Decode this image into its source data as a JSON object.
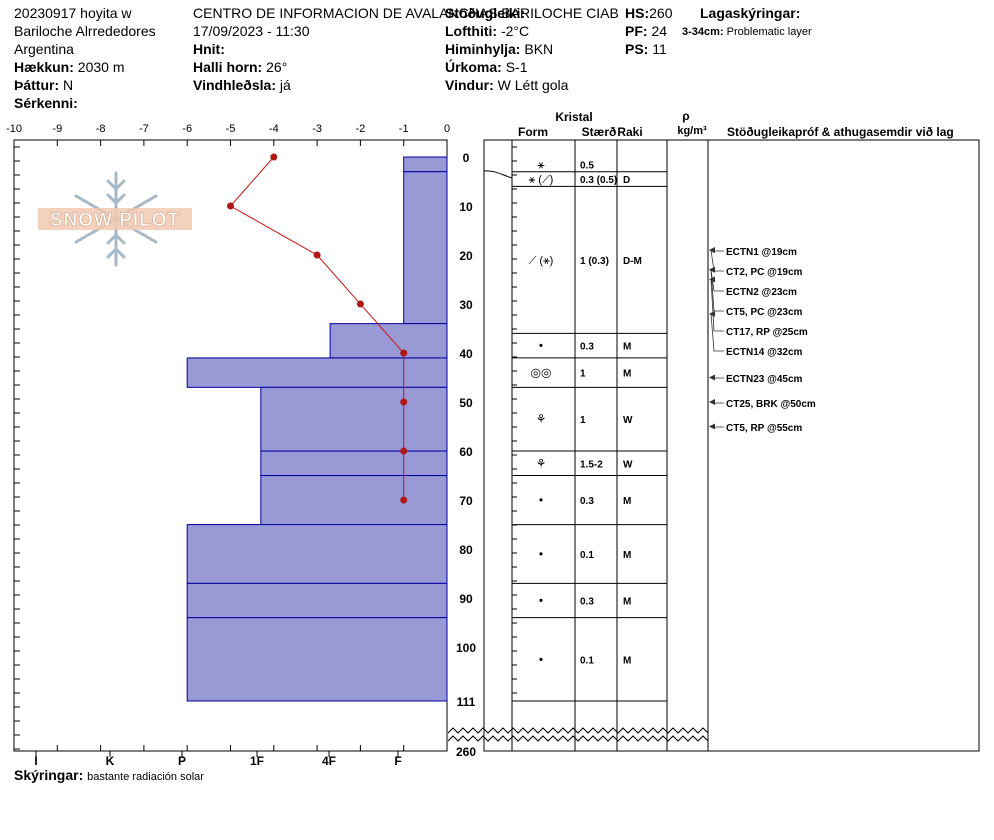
{
  "header": {
    "col1": [
      "20230917 hoyita w",
      "Bariloche Alrrededores",
      "Argentina"
    ],
    "elevation_label": "Hækkun:",
    "elevation": "2030 m",
    "aspect_label": "Þáttur:",
    "aspect": "N",
    "features_label": "Sérkenni:",
    "org": "CENTRO DE INFORMACION DE AVALANCHAS BARILOCHE CIAB",
    "datetime": "17/09/2023 - 11:30",
    "coords_label": "Hnit:",
    "slope_label": "Halli horn:",
    "slope": "26°",
    "wind_loading_label": "Vindhleðsla:",
    "wind_loading": "já",
    "stability_label": "Stöðugleiki:",
    "air_temp_label": "Lofthiti:",
    "air_temp": "-2°C",
    "sky_label": "Himinhylja:",
    "sky": "BKN",
    "precip_label": "Úrkoma:",
    "precip": "S-1",
    "wind_label": "Vindur:",
    "wind": "W Létt gola",
    "hs_label": "HS:",
    "hs": "260",
    "pf_label": "PF:",
    "pf": "24",
    "ps_label": "PS:",
    "ps": "11",
    "layers_label": "Lagaskýringar:",
    "layer_note_depth": "3-34cm:",
    "layer_note": "Problematic layer"
  },
  "footer": {
    "notes_label": "Skýringar:",
    "notes": "bastante radiación solar"
  },
  "logo": {
    "text": "SNOW PILOT"
  },
  "columns": {
    "crystal": "Kristal",
    "form": "Form",
    "size": "Stærð",
    "moisture": "Raki",
    "rho": "ρ",
    "density_unit": "kg/m³",
    "tests": "Stöðugleikapróf & athugasemdir við lag"
  },
  "colors": {
    "hardness_fill": "#9999d6",
    "hardness_stroke": "#0000a0",
    "temp_line": "#cc1111",
    "temp_point": "#b01818"
  },
  "chart_data": {
    "type": "area",
    "temperature_axis": {
      "min": -10,
      "max": 0,
      "ticks": [
        -10,
        -9,
        -8,
        -7,
        -6,
        -5,
        -4,
        -3,
        -2,
        -1,
        0
      ]
    },
    "depth_axis": {
      "ticks": [
        0,
        10,
        20,
        30,
        40,
        50,
        60,
        70,
        80,
        90,
        100,
        111
      ],
      "break_label": "260"
    },
    "hardness_axis": {
      "labels": [
        "I",
        "K",
        "P",
        "1F",
        "4F",
        "F"
      ]
    },
    "temperature_profile": [
      {
        "depth": 0,
        "temp": -4
      },
      {
        "depth": 10,
        "temp": -5
      },
      {
        "depth": 20,
        "temp": -3
      },
      {
        "depth": 30,
        "temp": -2
      },
      {
        "depth": 40,
        "temp": -1
      },
      {
        "depth": 50,
        "temp": -1
      },
      {
        "depth": 60,
        "temp": -1
      },
      {
        "depth": 70,
        "temp": -1
      }
    ],
    "hardness_layers": [
      {
        "top": 0,
        "bottom": 3,
        "temp_extent": -1
      },
      {
        "top": 3,
        "bottom": 34,
        "temp_extent": -1
      },
      {
        "top": 34,
        "bottom": 41,
        "temp_extent": -2.7
      },
      {
        "top": 41,
        "bottom": 47,
        "temp_extent": -6
      },
      {
        "top": 47,
        "bottom": 60,
        "temp_extent": -4.3
      },
      {
        "top": 60,
        "bottom": 65,
        "temp_extent": -4.3
      },
      {
        "top": 65,
        "bottom": 75,
        "temp_extent": -4.3
      },
      {
        "top": 75,
        "bottom": 87,
        "temp_extent": -6
      },
      {
        "top": 87,
        "bottom": 94,
        "temp_extent": -6
      },
      {
        "top": 94,
        "bottom": 111,
        "temp_extent": -6
      }
    ],
    "layer_table": [
      {
        "top": 0,
        "bottom": 3,
        "form": "⚹",
        "size": "0.5",
        "moisture": ""
      },
      {
        "top": 3,
        "bottom": 6,
        "form": "⚹ (⟋)",
        "size": "0.3 (0.5)",
        "moisture": "D"
      },
      {
        "top": 6,
        "bottom": 36,
        "form": "⟋ (⚹)",
        "size": "1 (0.3)",
        "moisture": "D-M"
      },
      {
        "top": 36,
        "bottom": 41,
        "form": "•",
        "size": "0.3",
        "moisture": "M"
      },
      {
        "top": 41,
        "bottom": 47,
        "form": "◎◎",
        "size": "1",
        "moisture": "M"
      },
      {
        "top": 47,
        "bottom": 60,
        "form": "⚘",
        "size": "1",
        "moisture": "W"
      },
      {
        "top": 60,
        "bottom": 65,
        "form": "⚘",
        "size": "1.5-2",
        "moisture": "W"
      },
      {
        "top": 65,
        "bottom": 75,
        "form": "•",
        "size": "0.3",
        "moisture": "M"
      },
      {
        "top": 75,
        "bottom": 87,
        "form": "•",
        "size": "0.1",
        "moisture": "M"
      },
      {
        "top": 87,
        "bottom": 94,
        "form": "•",
        "size": "0.3",
        "moisture": "M"
      },
      {
        "top": 94,
        "bottom": 111,
        "form": "•",
        "size": "0.1",
        "moisture": "M"
      }
    ],
    "tests": [
      {
        "label": "ECTN1 @19cm",
        "depth": 19
      },
      {
        "label": "CT2, PC @19cm",
        "depth": 19
      },
      {
        "label": "ECTN2 @23cm",
        "depth": 23
      },
      {
        "label": "CT5, PC @23cm",
        "depth": 23
      },
      {
        "label": "CT17, RP @25cm",
        "depth": 25
      },
      {
        "label": "ECTN14 @32cm",
        "depth": 32
      },
      {
        "label": "ECTN23 @45cm",
        "depth": 45
      },
      {
        "label": "CT25, BRK @50cm",
        "depth": 50
      },
      {
        "label": "CT5, RP @55cm",
        "depth": 55
      }
    ]
  }
}
